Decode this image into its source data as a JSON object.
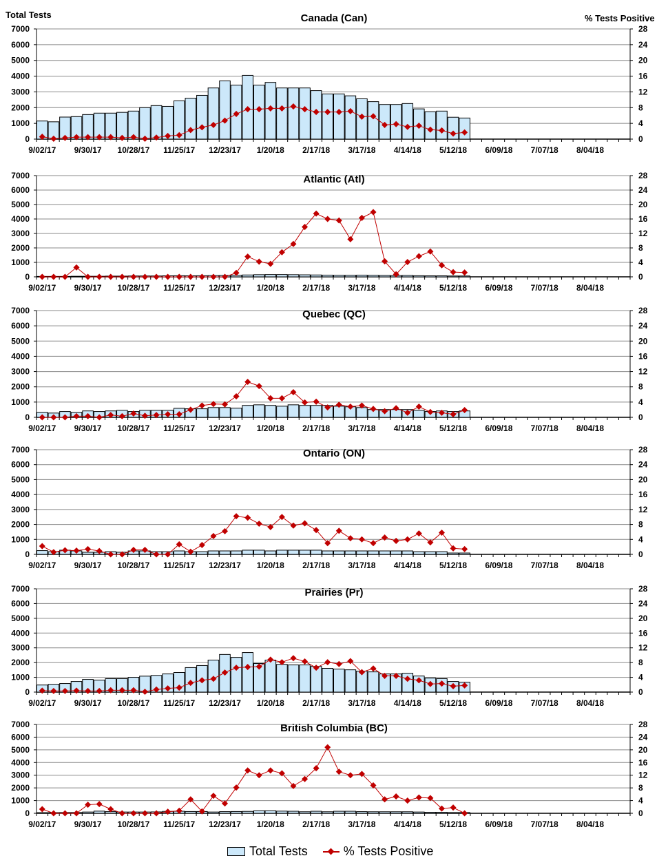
{
  "left_axis_title": "Total Tests",
  "right_axis_title": "% Tests Positive",
  "legend": {
    "bars": "Total Tests",
    "line": "% Tests Positive"
  },
  "colors": {
    "bar_fill": "#cce8fa",
    "bar_stroke": "#000000",
    "line": "#c00000"
  },
  "chart_data": [
    {
      "type": "bar+line",
      "title": "Canada (Can)",
      "x_tick_labels": [
        "9/02/17",
        "9/30/17",
        "10/28/17",
        "11/25/17",
        "12/23/17",
        "1/20/18",
        "2/17/18",
        "3/17/18",
        "4/14/18",
        "5/12/18",
        "6/09/18",
        "7/07/18",
        "8/04/18"
      ],
      "left_ticks": [
        "0",
        "1000",
        "2000",
        "3000",
        "4000",
        "5000",
        "6000",
        "7000"
      ],
      "right_ticks": [
        "0",
        "4",
        "8",
        "12",
        "16",
        "20",
        "24",
        "28"
      ],
      "ylim": [
        0,
        7000
      ],
      "y2lim": [
        0,
        28
      ],
      "weeks": 52,
      "total_tests": [
        1150,
        1100,
        1400,
        1430,
        1560,
        1650,
        1650,
        1700,
        1780,
        2000,
        2130,
        2080,
        2430,
        2600,
        2780,
        3250,
        3700,
        3430,
        4050,
        3430,
        3600,
        3250,
        3250,
        3250,
        3080,
        2870,
        2870,
        2750,
        2560,
        2380,
        2200,
        2200,
        2260,
        1920,
        1740,
        1780,
        1390,
        1340
      ],
      "pct_positive": [
        0.6,
        0.1,
        0.3,
        0.5,
        0.5,
        0.5,
        0.5,
        0.3,
        0.5,
        0.1,
        0.4,
        0.8,
        1.0,
        2.3,
        3.0,
        3.6,
        4.7,
        6.4,
        7.6,
        7.6,
        7.8,
        7.8,
        8.3,
        7.6,
        6.9,
        6.9,
        6.9,
        7.1,
        5.7,
        5.8,
        3.6,
        3.8,
        3.1,
        3.4,
        2.4,
        2.2,
        1.4,
        1.7
      ]
    },
    {
      "type": "bar+line",
      "title": "Atlantic (Atl)",
      "x_tick_labels": [
        "9/02/17",
        "9/30/17",
        "10/28/17",
        "11/25/17",
        "12/23/17",
        "1/20/18",
        "2/17/18",
        "3/17/18",
        "4/14/18",
        "5/12/18",
        "6/09/18",
        "7/07/18",
        "8/04/18"
      ],
      "left_ticks": [
        "0",
        "1000",
        "2000",
        "3000",
        "4000",
        "5000",
        "6000",
        "7000"
      ],
      "right_ticks": [
        "0",
        "4",
        "8",
        "12",
        "16",
        "20",
        "24",
        "28"
      ],
      "ylim": [
        0,
        7000
      ],
      "y2lim": [
        0,
        28
      ],
      "weeks": 52,
      "total_tests": [
        30,
        30,
        30,
        40,
        40,
        40,
        50,
        50,
        60,
        60,
        60,
        70,
        80,
        70,
        80,
        90,
        100,
        110,
        130,
        150,
        160,
        160,
        150,
        140,
        130,
        120,
        110,
        110,
        120,
        110,
        100,
        90,
        100,
        80,
        70,
        70,
        60,
        60
      ],
      "pct_positive": [
        0,
        0,
        0,
        2.6,
        0,
        0,
        0,
        0,
        0,
        0,
        0,
        0,
        0,
        0,
        0,
        0,
        0,
        1.1,
        5.6,
        4.2,
        3.6,
        6.8,
        9.1,
        13.8,
        17.5,
        16.0,
        15.6,
        10.4,
        16.3,
        17.9,
        4.3,
        0.7,
        4.1,
        5.7,
        7.0,
        3.2,
        1.3,
        1.2
      ]
    },
    {
      "type": "bar+line",
      "title": "Quebec (QC)",
      "x_tick_labels": [
        "9/02/17",
        "9/30/17",
        "10/28/17",
        "11/25/17",
        "12/23/17",
        "1/20/18",
        "2/17/18",
        "3/17/18",
        "4/14/18",
        "5/12/18",
        "6/09/18",
        "7/07/18",
        "8/04/18"
      ],
      "left_ticks": [
        "0",
        "1000",
        "2000",
        "3000",
        "4000",
        "5000",
        "6000",
        "7000"
      ],
      "right_ticks": [
        "0",
        "4",
        "8",
        "12",
        "16",
        "20",
        "24",
        "28"
      ],
      "ylim": [
        0,
        7000
      ],
      "y2lim": [
        0,
        28
      ],
      "weeks": 52,
      "total_tests": [
        330,
        280,
        380,
        330,
        420,
        380,
        420,
        460,
        380,
        460,
        460,
        460,
        590,
        560,
        560,
        640,
        640,
        600,
        780,
        820,
        780,
        730,
        820,
        780,
        780,
        780,
        730,
        690,
        640,
        510,
        510,
        510,
        510,
        460,
        380,
        420,
        380,
        420
      ],
      "pct_positive": [
        0,
        0,
        0,
        0.3,
        0.3,
        0,
        0.6,
        0.3,
        1.0,
        0.4,
        0.6,
        0.8,
        0.8,
        2.0,
        3.1,
        3.5,
        3.4,
        5.5,
        9.3,
        8.2,
        5.0,
        5.0,
        6.6,
        3.9,
        4.1,
        2.6,
        3.3,
        2.8,
        3.1,
        2.2,
        1.6,
        2.4,
        1.2,
        2.8,
        1.4,
        1.2,
        0.8,
        1.9
      ]
    },
    {
      "type": "bar+line",
      "title": "Ontario (ON)",
      "x_tick_labels": [
        "9/02/17",
        "9/30/17",
        "10/28/17",
        "11/25/17",
        "12/23/17",
        "1/20/18",
        "2/17/18",
        "3/17/18",
        "4/14/18",
        "5/12/18",
        "6/09/18",
        "7/07/18",
        "8/04/18"
      ],
      "left_ticks": [
        "0",
        "1000",
        "2000",
        "3000",
        "4000",
        "5000",
        "6000",
        "7000"
      ],
      "right_ticks": [
        "0",
        "4",
        "8",
        "12",
        "16",
        "20",
        "24",
        "28"
      ],
      "ylim": [
        0,
        7000
      ],
      "y2lim": [
        0,
        28
      ],
      "weeks": 52,
      "total_tests": [
        250,
        180,
        280,
        230,
        140,
        140,
        180,
        140,
        230,
        230,
        180,
        180,
        230,
        180,
        180,
        230,
        230,
        230,
        280,
        280,
        230,
        280,
        280,
        280,
        280,
        230,
        230,
        230,
        230,
        230,
        230,
        230,
        230,
        180,
        180,
        180,
        90,
        90
      ],
      "pct_positive": [
        2.2,
        0.6,
        1.1,
        1.0,
        1.4,
        0.9,
        0,
        0,
        1.2,
        1.2,
        0,
        0,
        2.7,
        0.7,
        2.5,
        4.9,
        6.2,
        10.2,
        9.8,
        8.2,
        7.3,
        10.0,
        7.7,
        8.3,
        6.5,
        3.0,
        6.3,
        4.3,
        4.0,
        3.0,
        4.5,
        3.6,
        4.0,
        5.6,
        3.2,
        5.8,
        1.6,
        1.4
      ]
    },
    {
      "type": "bar+line",
      "title": "Prairies (Pr)",
      "x_tick_labels": [
        "9/02/17",
        "9/30/17",
        "10/28/17",
        "11/25/17",
        "12/23/17",
        "1/20/18",
        "2/17/18",
        "3/17/18",
        "4/14/18",
        "5/12/18",
        "6/09/18",
        "7/07/18",
        "8/04/18"
      ],
      "left_ticks": [
        "0",
        "1000",
        "2000",
        "3000",
        "4000",
        "5000",
        "6000",
        "7000"
      ],
      "right_ticks": [
        "0",
        "4",
        "8",
        "12",
        "16",
        "20",
        "24",
        "28"
      ],
      "ylim": [
        0,
        7000
      ],
      "y2lim": [
        0,
        28
      ],
      "weeks": 52,
      "total_tests": [
        480,
        530,
        580,
        720,
        860,
        810,
        910,
        910,
        1000,
        1080,
        1130,
        1230,
        1330,
        1660,
        1800,
        2170,
        2550,
        2350,
        2680,
        1940,
        2170,
        1880,
        1840,
        1840,
        1740,
        1610,
        1560,
        1510,
        1420,
        1370,
        1230,
        1230,
        1280,
        1090,
        950,
        910,
        720,
        670
      ],
      "pct_positive": [
        0.4,
        0.3,
        0.3,
        0.4,
        0.3,
        0.3,
        0.5,
        0.5,
        0.5,
        0.1,
        0.7,
        1.0,
        1.2,
        2.5,
        3.2,
        3.6,
        5.3,
        6.6,
        6.8,
        6.9,
        8.8,
        8.1,
        9.2,
        8.3,
        6.6,
        8.1,
        7.6,
        8.4,
        5.4,
        6.4,
        4.4,
        4.4,
        3.6,
        3.2,
        2.2,
        2.3,
        1.6,
        1.8
      ]
    },
    {
      "type": "bar+line",
      "title": "British Columbia (BC)",
      "x_tick_labels": [
        "9/02/17",
        "9/30/17",
        "10/28/17",
        "11/25/17",
        "12/23/17",
        "1/20/18",
        "2/17/18",
        "3/17/18",
        "4/14/18",
        "5/12/18",
        "6/09/18",
        "7/07/18",
        "8/04/18"
      ],
      "left_ticks": [
        "0",
        "1000",
        "2000",
        "3000",
        "4000",
        "5000",
        "6000",
        "7000"
      ],
      "right_ticks": [
        "0",
        "4",
        "8",
        "12",
        "16",
        "20",
        "24",
        "28"
      ],
      "ylim": [
        0,
        7000
      ],
      "y2lim": [
        0,
        28
      ],
      "weeks": 52,
      "total_tests": [
        50,
        50,
        60,
        60,
        100,
        170,
        130,
        100,
        100,
        100,
        110,
        150,
        160,
        140,
        140,
        100,
        130,
        140,
        150,
        200,
        200,
        170,
        160,
        120,
        160,
        120,
        160,
        160,
        130,
        120,
        120,
        120,
        120,
        100,
        80,
        80,
        60,
        60
      ],
      "pct_positive": [
        1.3,
        0,
        0,
        0,
        2.7,
        2.9,
        1.3,
        0,
        0,
        0,
        0,
        0.5,
        0.8,
        4.4,
        0.6,
        5.5,
        3.1,
        8.1,
        13.5,
        12.0,
        13.5,
        12.6,
        8.6,
        10.8,
        14.2,
        20.8,
        13.1,
        12.0,
        12.4,
        8.8,
        4.4,
        5.3,
        4.0,
        5.0,
        4.8,
        1.5,
        1.8,
        0
      ]
    }
  ]
}
